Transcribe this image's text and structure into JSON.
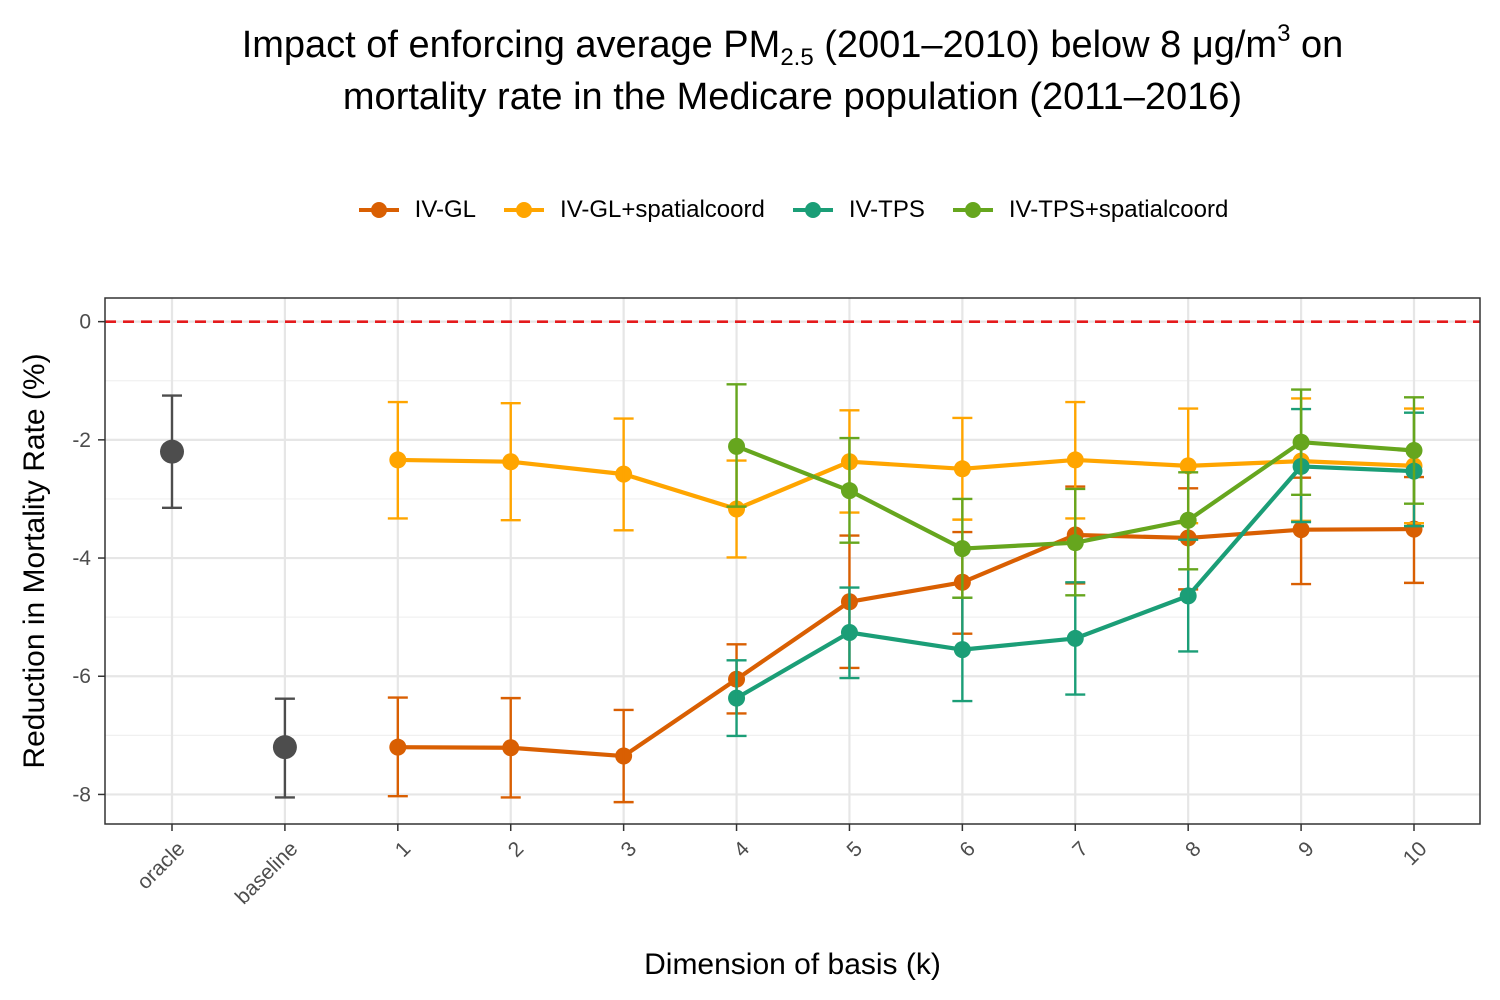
{
  "title": {
    "line1_a": "Impact of enforcing average PM",
    "line1_sub": "2.5",
    "line1_b": " (2001–2010) below 8 μg/m",
    "line1_sup": "3",
    "line1_c": "  on",
    "line2": "mortality rate in the Medicare population (2011–2016)"
  },
  "chart_data": {
    "type": "line",
    "title": "Impact of enforcing average PM2.5 (2001–2010) below 8 μg/m3 on mortality rate in the Medicare population (2011–2016)",
    "xlabel": "Dimension of basis (k)",
    "ylabel": "Reduction in Mortality Rate (%)",
    "categories": [
      "oracle",
      "baseline",
      "1",
      "2",
      "3",
      "4",
      "5",
      "6",
      "7",
      "8",
      "9",
      "10"
    ],
    "ylim": [
      -8.5,
      0.4
    ],
    "yticks": [
      0,
      -2,
      -4,
      -6,
      -8
    ],
    "ytick_labels": [
      "0",
      "-2",
      "-4",
      "-6",
      "-8"
    ],
    "grid": true,
    "legend_position": "top",
    "reference_line": {
      "y": 0,
      "color": "#e41a1c",
      "style": "dashed"
    },
    "reference_points": [
      {
        "category": "oracle",
        "value": -2.2,
        "lower": -3.15,
        "upper": -1.25,
        "color": "#4d4d4d"
      },
      {
        "category": "baseline",
        "value": -7.2,
        "lower": -8.05,
        "upper": -6.38,
        "color": "#4d4d4d"
      }
    ],
    "series": [
      {
        "name": "IV-GL",
        "color": "#d95f02",
        "x": [
          "1",
          "2",
          "3",
          "4",
          "5",
          "6",
          "7",
          "8",
          "9",
          "10"
        ],
        "values": [
          -7.2,
          -7.21,
          -7.35,
          -6.05,
          -4.74,
          -4.41,
          -3.61,
          -3.66,
          -3.52,
          -3.51
        ],
        "lower": [
          -8.03,
          -8.05,
          -8.13,
          -6.63,
          -5.86,
          -5.28,
          -4.43,
          -4.53,
          -4.44,
          -4.42
        ],
        "upper": [
          -6.36,
          -6.37,
          -6.57,
          -5.46,
          -3.62,
          -3.56,
          -2.79,
          -2.82,
          -2.64,
          -2.63
        ]
      },
      {
        "name": "IV-GL+spatialcoord",
        "color": "#ffa500",
        "x": [
          "1",
          "2",
          "3",
          "4",
          "5",
          "6",
          "7",
          "8",
          "9",
          "10"
        ],
        "values": [
          -2.34,
          -2.37,
          -2.58,
          -3.17,
          -2.37,
          -2.49,
          -2.34,
          -2.44,
          -2.36,
          -2.44
        ],
        "lower": [
          -3.33,
          -3.36,
          -3.53,
          -3.99,
          -3.23,
          -3.35,
          -3.33,
          -3.41,
          -3.37,
          -3.41
        ],
        "upper": [
          -1.36,
          -1.38,
          -1.64,
          -2.35,
          -1.5,
          -1.63,
          -1.36,
          -1.47,
          -1.3,
          -1.47
        ]
      },
      {
        "name": "IV-TPS",
        "color": "#1b9e77",
        "x": [
          "4",
          "5",
          "6",
          "7",
          "8",
          "9",
          "10"
        ],
        "values": [
          -6.37,
          -5.26,
          -5.55,
          -5.36,
          -4.64,
          -2.45,
          -2.53
        ],
        "lower": [
          -7.01,
          -6.03,
          -6.42,
          -6.31,
          -5.58,
          -3.39,
          -3.46
        ],
        "upper": [
          -5.73,
          -4.5,
          -4.67,
          -4.41,
          -3.69,
          -1.48,
          -1.54
        ]
      },
      {
        "name": "IV-TPS+spatialcoord",
        "color": "#66a61e",
        "x": [
          "4",
          "5",
          "6",
          "7",
          "8",
          "9",
          "10"
        ],
        "values": [
          -2.11,
          -2.86,
          -3.84,
          -3.74,
          -3.36,
          -2.04,
          -2.18
        ],
        "lower": [
          -3.13,
          -3.74,
          -4.67,
          -4.63,
          -4.19,
          -2.93,
          -3.08
        ],
        "upper": [
          -1.06,
          -1.97,
          -3.0,
          -2.83,
          -2.55,
          -1.15,
          -1.28
        ]
      }
    ]
  }
}
